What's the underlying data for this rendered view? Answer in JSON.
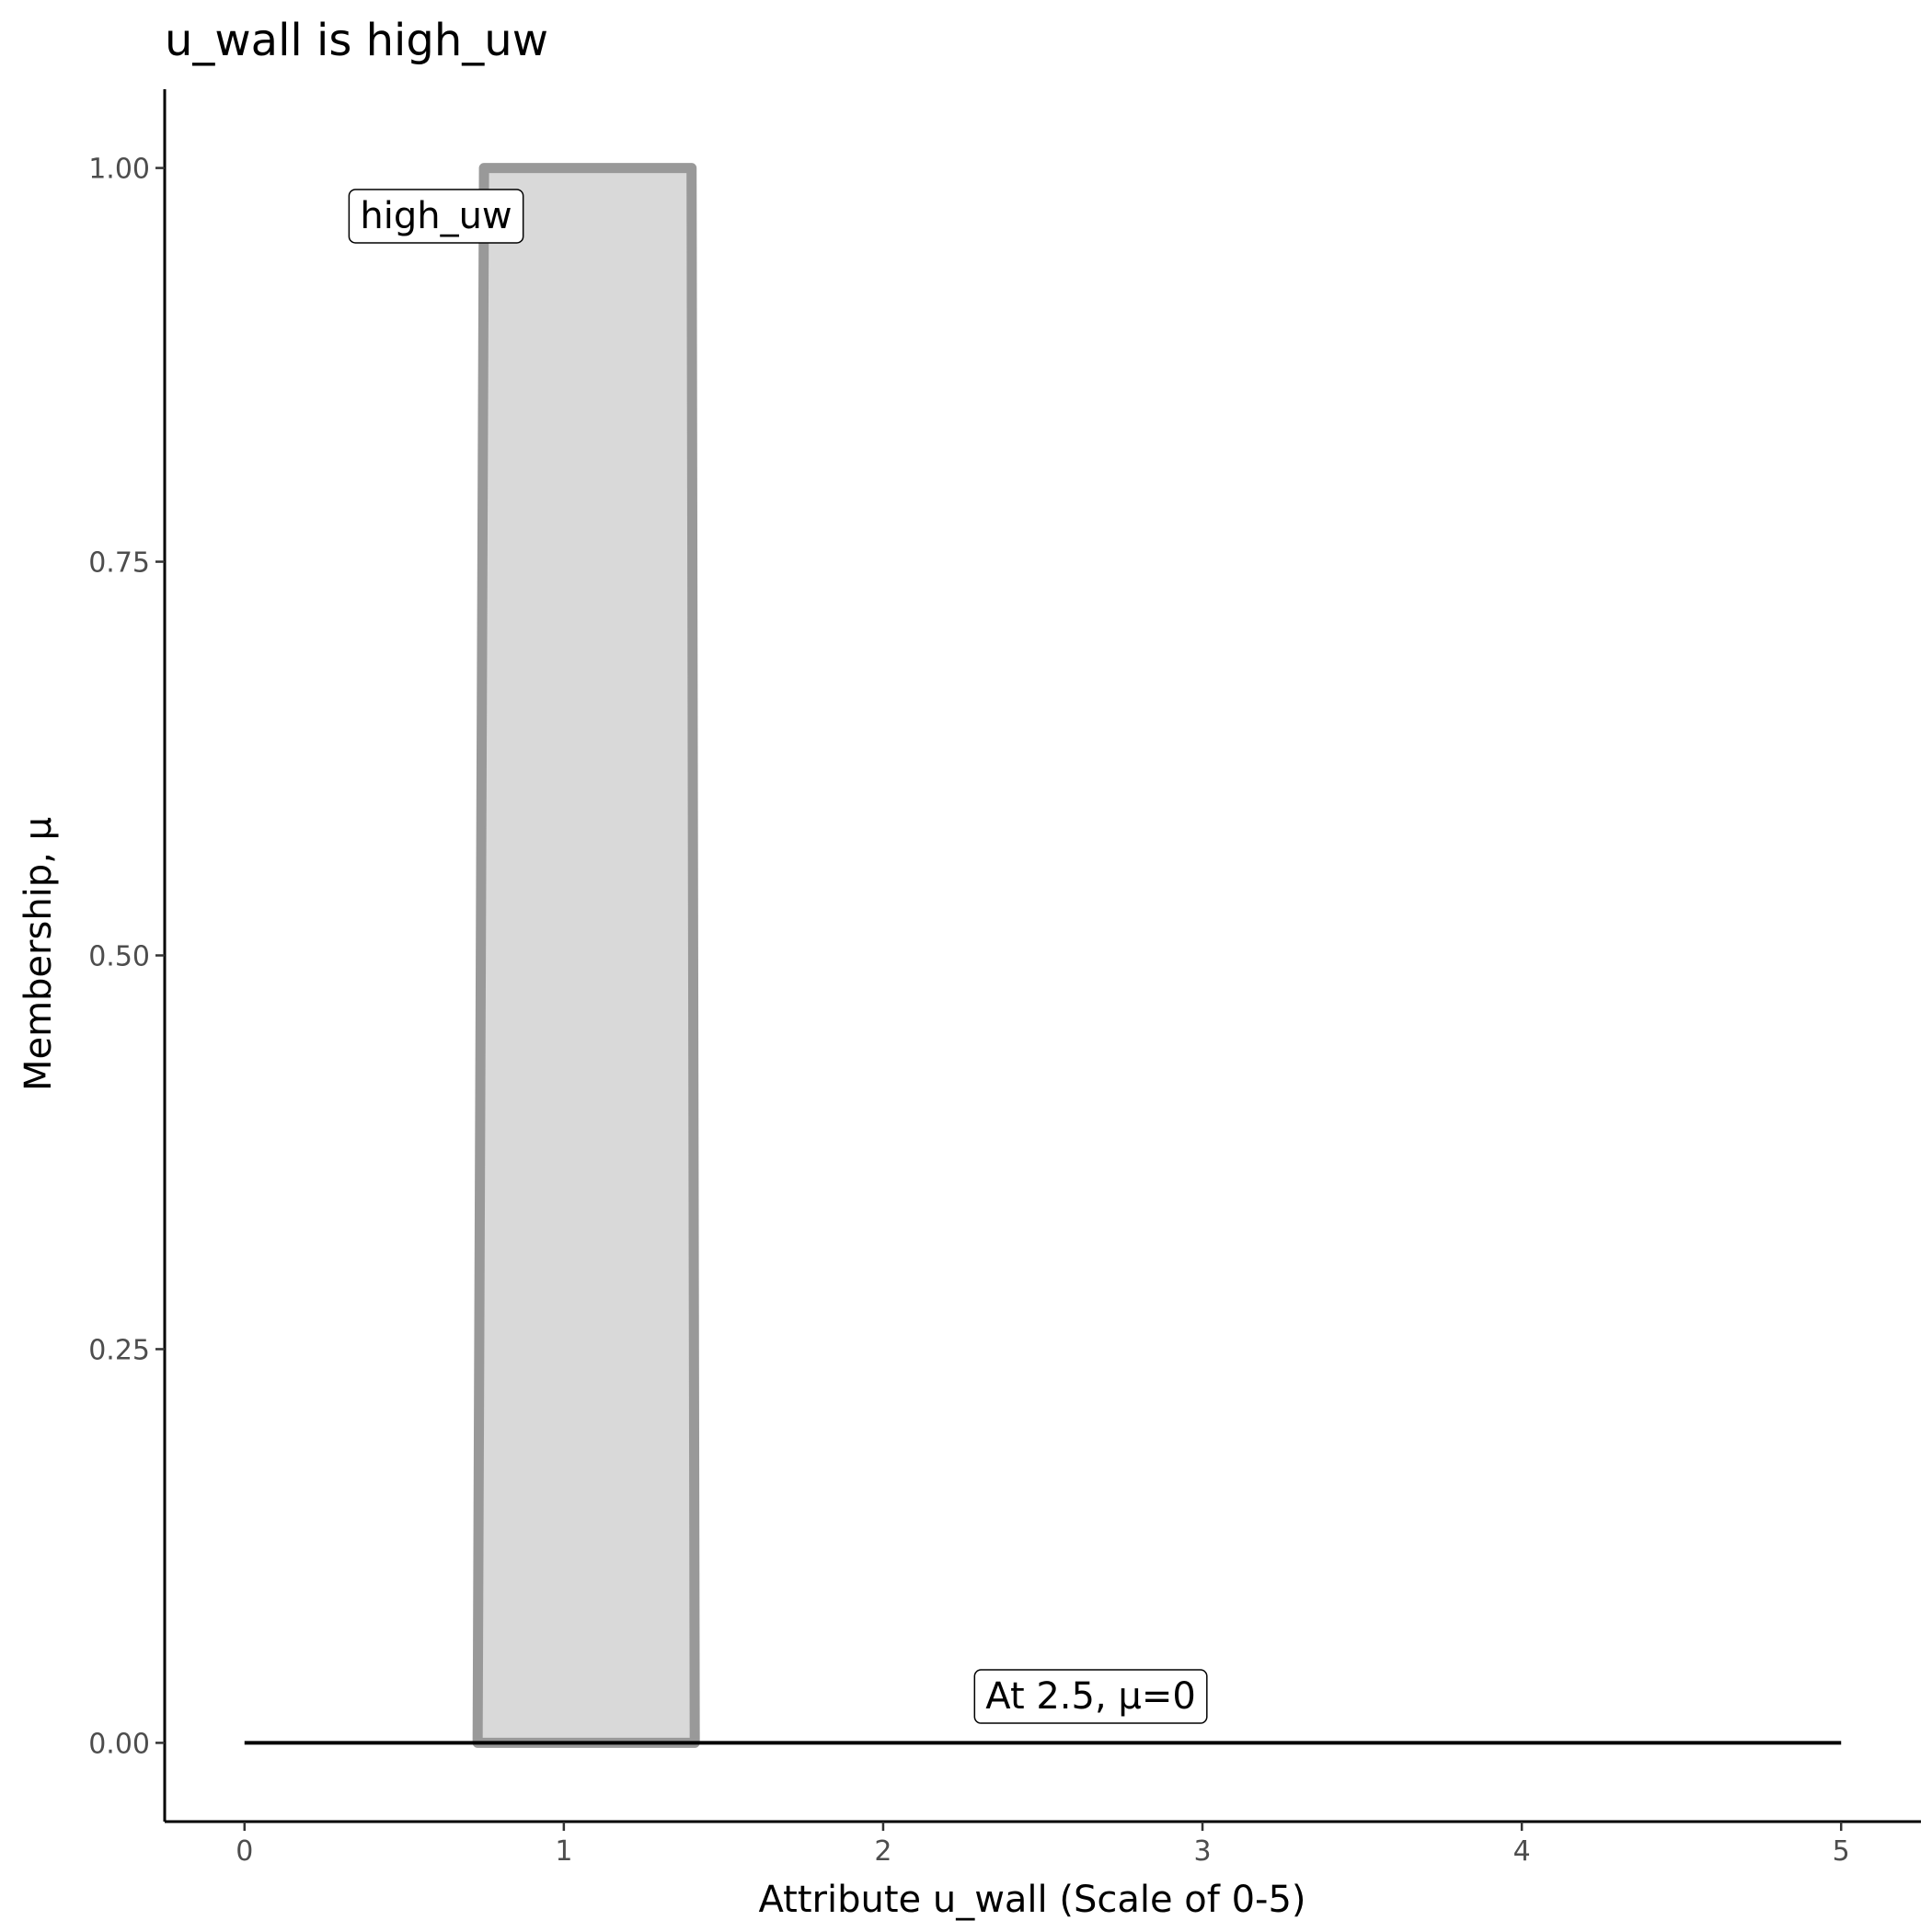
{
  "chart_data": {
    "type": "area",
    "title": "u_wall is high_uw",
    "xlabel": "Attribute u_wall (Scale of 0-5)",
    "ylabel": "Membership, μ",
    "xlim": [
      -0.25,
      5.25
    ],
    "ylim": [
      -0.05,
      1.05
    ],
    "x_ticks": [
      0,
      1,
      2,
      3,
      4,
      5
    ],
    "x_tick_labels": [
      "0",
      "1",
      "2",
      "3",
      "4",
      "5"
    ],
    "y_ticks": [
      0,
      0.25,
      0.5,
      0.75,
      1
    ],
    "y_tick_labels": [
      "0.00",
      "0.25",
      "0.50",
      "0.75",
      "1.00"
    ],
    "grid": false,
    "series": [
      {
        "name": "high_uw",
        "x": [
          0.73,
          0.75,
          1.4,
          1.41
        ],
        "y": [
          0,
          1,
          1,
          0
        ],
        "fill": "#d9d9d9",
        "stroke": "#999999"
      }
    ],
    "reference_line": {
      "x": [
        0,
        5
      ],
      "y": [
        0,
        0
      ],
      "color": "#000000"
    },
    "annotations": [
      {
        "text": "high_uw",
        "x": 0.6,
        "y": 0.97
      },
      {
        "text": "At 2.5, μ=0",
        "x": 2.65,
        "y": 0.03
      }
    ]
  }
}
